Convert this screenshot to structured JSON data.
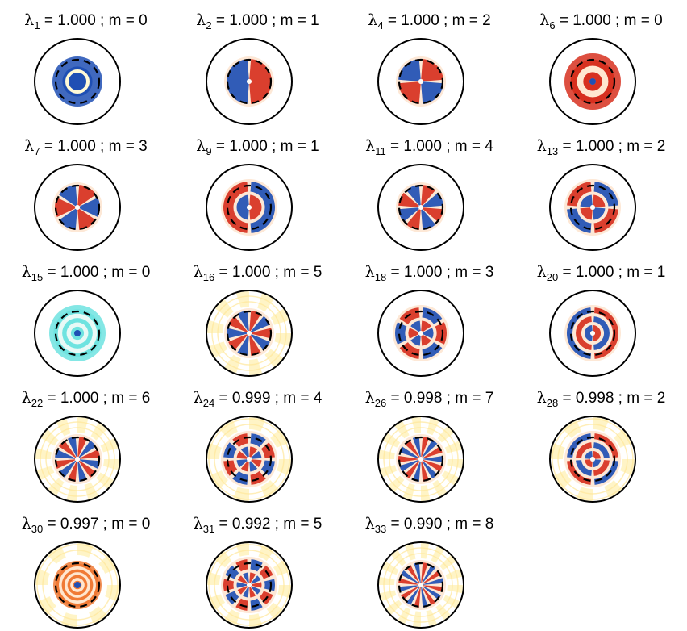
{
  "panels": [
    {
      "index": "1",
      "value": "1.000",
      "m": 0,
      "rings": 0,
      "main": "blue"
    },
    {
      "index": "2",
      "value": "1.000",
      "m": 1,
      "rings": 0
    },
    {
      "index": "4",
      "value": "1.000",
      "m": 2,
      "rings": 0
    },
    {
      "index": "6",
      "value": "1.000",
      "m": 0,
      "rings": 1,
      "main": "red"
    },
    {
      "index": "7",
      "value": "1.000",
      "m": 3,
      "rings": 0
    },
    {
      "index": "9",
      "value": "1.000",
      "m": 1,
      "rings": 1
    },
    {
      "index": "11",
      "value": "1.000",
      "m": 4,
      "rings": 0
    },
    {
      "index": "13",
      "value": "1.000",
      "m": 2,
      "rings": 1
    },
    {
      "index": "15",
      "value": "1.000",
      "m": 0,
      "rings": 2,
      "main": "cyan"
    },
    {
      "index": "16",
      "value": "1.000",
      "m": 5,
      "rings": 0
    },
    {
      "index": "18",
      "value": "1.000",
      "m": 3,
      "rings": 1
    },
    {
      "index": "20",
      "value": "1.000",
      "m": 1,
      "rings": 2
    },
    {
      "index": "22",
      "value": "1.000",
      "m": 6,
      "rings": 0
    },
    {
      "index": "24",
      "value": "0.999",
      "m": 4,
      "rings": 1
    },
    {
      "index": "26",
      "value": "0.998",
      "m": 7,
      "rings": 0
    },
    {
      "index": "28",
      "value": "0.998",
      "m": 2,
      "rings": 2
    },
    {
      "index": "30",
      "value": "0.997",
      "m": 0,
      "rings": 3,
      "main": "orange"
    },
    {
      "index": "31",
      "value": "0.992",
      "m": 5,
      "rings": 1
    },
    {
      "index": "33",
      "value": "0.990",
      "m": 8,
      "rings": 0
    }
  ],
  "colors": {
    "red": "#d7301f",
    "blue": "#1f4fb4",
    "cyan": "#6fe3e0",
    "orange": "#f07a35",
    "pale": "#fff3c0",
    "outline": "#000000"
  }
}
